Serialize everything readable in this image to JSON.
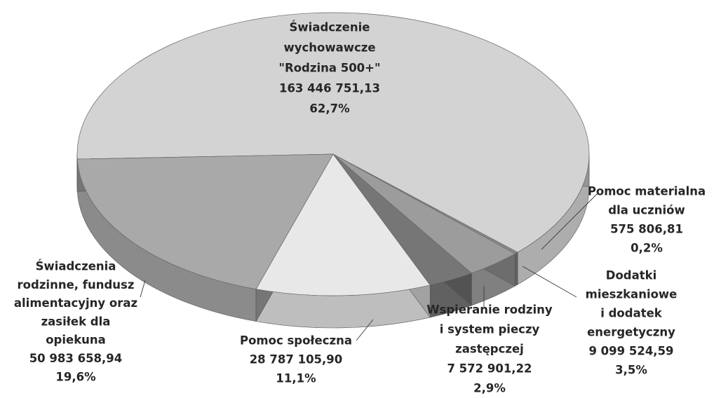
{
  "chart_data": {
    "type": "pie3d",
    "categories": [
      [
        "Świadczenie",
        "wychowawcze",
        "\"Rodzina 500+\""
      ],
      [
        "Pomoc materialna",
        "dla uczniów"
      ],
      [
        "Dodatki",
        "mieszkaniowe",
        "i dodatek",
        "energetyczny"
      ],
      [
        "Wspieranie rodziny",
        "i system pieczy",
        "zastępczej"
      ],
      [
        "Pomoc społeczna"
      ],
      [
        "Świadczenia",
        "rodzinne, fundusz",
        "alimentacyjny oraz",
        "zasiłek dla",
        "opiekuna"
      ]
    ],
    "values": [
      163446751.13,
      575806.81,
      9099524.59,
      7572901.22,
      28787105.9,
      50983658.94
    ],
    "value_labels": [
      "163 446 751,13",
      "575 806,81",
      "9 099 524,59",
      "7 572 901,22",
      "28 787 105,90",
      "50 983 658,94"
    ],
    "percent_labels": [
      "62,7%",
      "0,2%",
      "3,5%",
      "2,9%",
      "11,1%",
      "19,6%"
    ],
    "colors": [
      "#d3d3d3",
      "#8a8a8a",
      "#9c9c9c",
      "#767676",
      "#e8e8e8",
      "#a9a9a9"
    ]
  }
}
